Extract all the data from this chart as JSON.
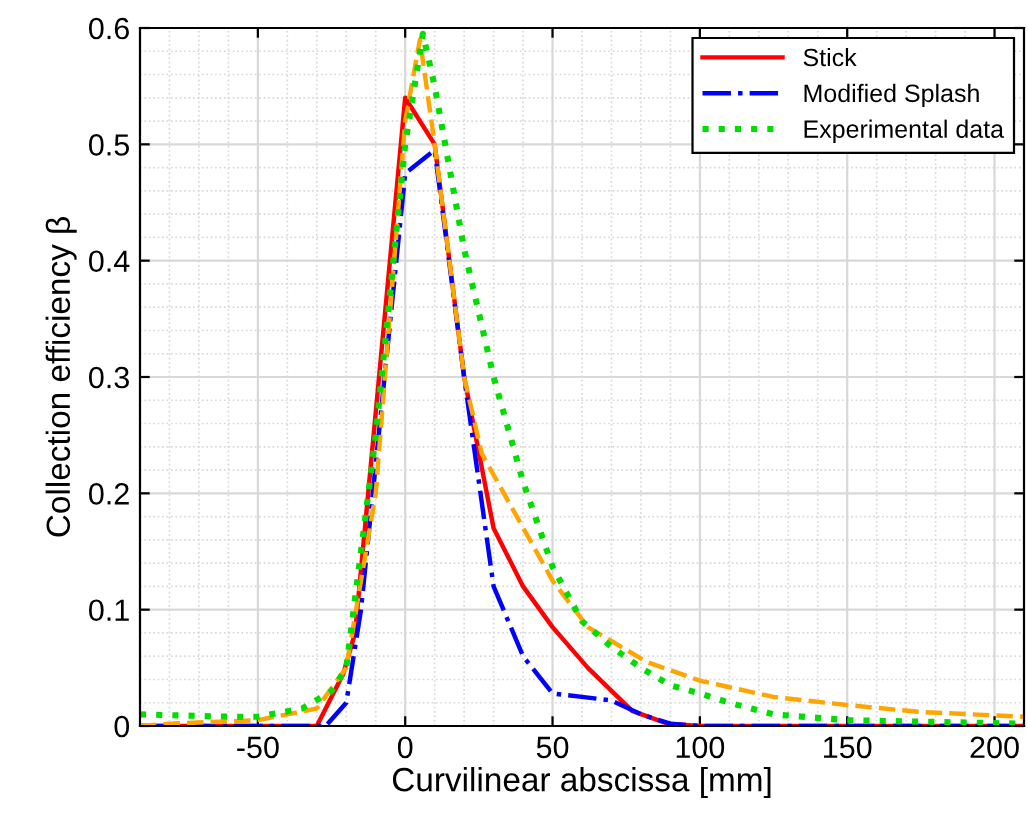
{
  "chart_data": {
    "type": "line",
    "xlabel": "Curvilinear abscissa [mm]",
    "ylabel": "Collection efficiency β",
    "xlim": [
      -90,
      210
    ],
    "ylim": [
      0,
      0.6
    ],
    "xticks": [
      -50,
      0,
      50,
      100,
      150,
      200
    ],
    "yticks": [
      0,
      0.1,
      0.2,
      0.3,
      0.4,
      0.5,
      0.6
    ],
    "grid": true,
    "legend": "top right",
    "series": [
      {
        "name": "Stick",
        "color": "#ff0000",
        "line_style": "solid",
        "x": [
          -90,
          -30,
          -21,
          -17,
          0,
          10,
          20,
          30,
          40,
          50,
          62,
          77,
          89,
          100,
          210
        ],
        "values": [
          0,
          0,
          0.045,
          0.08,
          0.54,
          0.5,
          0.3,
          0.17,
          0.12,
          0.085,
          0.05,
          0.013,
          0.002,
          0,
          0
        ]
      },
      {
        "name": "Modified Splash",
        "color": "#0000ff",
        "line_style": "dashdot",
        "x": [
          -90,
          -27,
          -20,
          -15,
          -5,
          0,
          10,
          20,
          30,
          40,
          50,
          60,
          70,
          80,
          90,
          100,
          210
        ],
        "values": [
          0,
          0,
          0.02,
          0.1,
          0.35,
          0.475,
          0.495,
          0.3,
          0.12,
          0.06,
          0.028,
          0.025,
          0.022,
          0.01,
          0.002,
          0,
          0
        ]
      },
      {
        "color": "#ffa500",
        "line_style": "dashed",
        "x": [
          -90,
          -80,
          -50,
          -30,
          -20,
          -10,
          0,
          5,
          10,
          20,
          26,
          50,
          62,
          82,
          100,
          125,
          150,
          175,
          210
        ],
        "values": [
          0,
          0.002,
          0.005,
          0.015,
          0.05,
          0.2,
          0.52,
          0.59,
          0.5,
          0.3,
          0.234,
          0.125,
          0.085,
          0.055,
          0.039,
          0.025,
          0.018,
          0.012,
          0.008
        ]
      },
      {
        "name": "Experimental data",
        "color": "#00dd00",
        "line_style": "dotted",
        "x": [
          -90,
          -60,
          -50,
          -35,
          -25,
          -20,
          -10,
          0,
          6,
          10,
          20,
          30,
          40,
          50,
          60,
          70,
          80,
          90,
          100,
          110,
          125,
          150,
          210
        ],
        "values": [
          0.01,
          0.008,
          0.008,
          0.015,
          0.03,
          0.05,
          0.25,
          0.5,
          0.595,
          0.55,
          0.41,
          0.3,
          0.21,
          0.137,
          0.09,
          0.068,
          0.05,
          0.035,
          0.028,
          0.02,
          0.01,
          0.005,
          0.002
        ]
      }
    ]
  }
}
